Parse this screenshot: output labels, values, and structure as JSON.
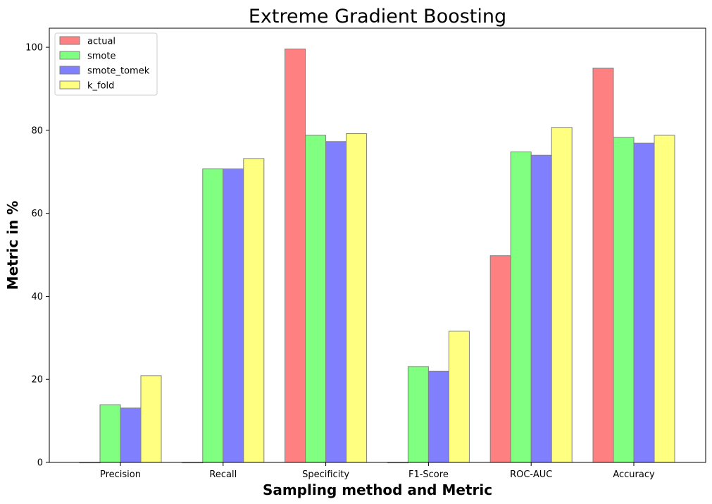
{
  "chart_data": {
    "type": "bar",
    "title": "Extreme Gradient Boosting",
    "xlabel": "Sampling method and Metric",
    "ylabel": "Metric in %",
    "categories": [
      "Precision",
      "Recall",
      "Specificity",
      "F1-Score",
      "ROC-AUC",
      "Accuracy"
    ],
    "series": [
      {
        "name": "actual",
        "color": "#ff8080",
        "values": [
          0,
          0,
          99.6,
          0,
          49.8,
          95.0
        ]
      },
      {
        "name": "smote",
        "color": "#80ff80",
        "values": [
          13.9,
          70.7,
          78.8,
          23.1,
          74.8,
          78.3
        ]
      },
      {
        "name": "smote_tomek",
        "color": "#8080ff",
        "values": [
          13.1,
          70.7,
          77.3,
          22.0,
          74.0,
          76.9
        ]
      },
      {
        "name": "k_fold",
        "color": "#ffff80",
        "values": [
          20.9,
          73.2,
          79.2,
          31.6,
          80.7,
          78.8
        ]
      }
    ],
    "yticks": [
      0,
      20,
      40,
      60,
      80,
      100
    ],
    "ylim": [
      0,
      104.6
    ],
    "grid": false,
    "legend_position": "top-left",
    "bar_edge_color": "#808080"
  }
}
